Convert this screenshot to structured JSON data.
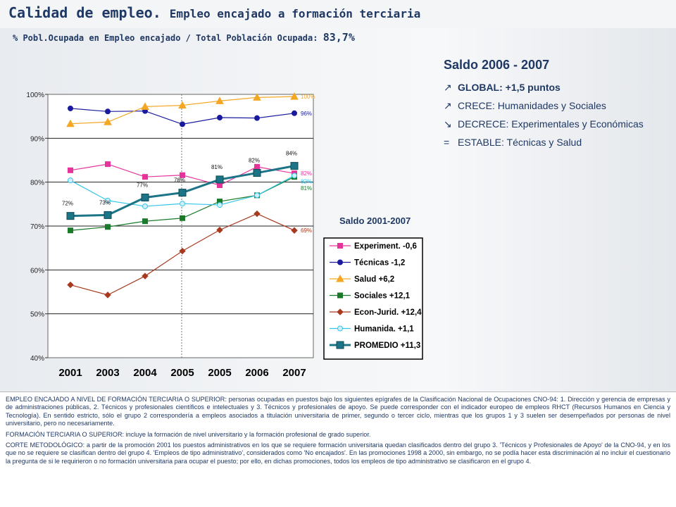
{
  "header": {
    "title_main": "Calidad de empleo.",
    "title_sub": "Empleo encajado a formación terciaria",
    "subtitle_label": "% Pobl.Ocupada en Empleo encajado / Total Población Ocupada:",
    "subtitle_value": "83,7%"
  },
  "saldo": {
    "title": "Saldo 2006 - 2007",
    "items": [
      {
        "symbol": "↗",
        "label": "GLOBAL: +1,5 puntos",
        "bold": true,
        "icon": "arrow-up-icon"
      },
      {
        "symbol": "↗",
        "label": "CRECE: Humanidades y Sociales",
        "bold": false,
        "icon": "arrow-up-icon"
      },
      {
        "symbol": "↘",
        "label": "DECRECE: Experimentales y Económicas",
        "bold": false,
        "icon": "arrow-down-icon"
      },
      {
        "symbol": "=",
        "label": "ESTABLE: Técnicas y Salud",
        "bold": false,
        "icon": "equals-icon"
      }
    ],
    "period_label": "Saldo 2001-2007"
  },
  "chart_data": {
    "type": "line",
    "categories": [
      "2001",
      "2003",
      "2004",
      "2005",
      "2005",
      "2006",
      "2007"
    ],
    "ylim": [
      40,
      100
    ],
    "yticks": [
      "40%",
      "50%",
      "60%",
      "70%",
      "80%",
      "90%",
      "100%"
    ],
    "grid": "horizontal",
    "legend_position": "right",
    "series": [
      {
        "name": "Experiment. -0,6",
        "color": "#e6339b",
        "marker": "square",
        "values": [
          82.7,
          84.1,
          81.2,
          81.6,
          79.3,
          83.5,
          82.0
        ]
      },
      {
        "name": "Técnicas -1,2",
        "color": "#1a1a9e",
        "marker": "circle",
        "values": [
          96.8,
          96.1,
          96.2,
          93.2,
          94.7,
          94.6,
          95.7
        ]
      },
      {
        "name": "Salud +6,2",
        "color": "#f5a623",
        "marker": "triangle",
        "values": [
          93.3,
          93.7,
          97.2,
          97.5,
          98.5,
          99.3,
          99.5
        ]
      },
      {
        "name": "Sociales +12,1",
        "color": "#1a7a2a",
        "marker": "square",
        "values": [
          69.0,
          69.8,
          71.1,
          71.8,
          75.6,
          77.0,
          81.2
        ]
      },
      {
        "name": "Econ-Jurid. +12,4",
        "color": "#a8391e",
        "marker": "diamond",
        "values": [
          56.6,
          54.3,
          58.6,
          64.3,
          69.1,
          72.8,
          69.0
        ]
      },
      {
        "name": "Humanida. +1,1",
        "color": "#33c6e8",
        "marker": "circle",
        "values": [
          80.4,
          75.8,
          74.5,
          75.1,
          74.8,
          77.0,
          81.5
        ]
      },
      {
        "name": "PROMEDIO +11,3",
        "color": "#1b7587",
        "marker": "square-lg",
        "values": [
          72.3,
          72.5,
          76.5,
          77.6,
          80.6,
          82.1,
          83.7
        ]
      }
    ],
    "data_labels": [
      {
        "series": 6,
        "index": 0,
        "text": "72%"
      },
      {
        "series": 6,
        "index": 1,
        "text": "73%"
      },
      {
        "series": 6,
        "index": 2,
        "text": "77%"
      },
      {
        "series": 6,
        "index": 3,
        "text": "78%"
      },
      {
        "series": 6,
        "index": 4,
        "text": "81%"
      },
      {
        "series": 6,
        "index": 5,
        "text": "82%"
      },
      {
        "series": 6,
        "index": 6,
        "text": "84%"
      }
    ],
    "end_labels": [
      {
        "series": 2,
        "text": "100%"
      },
      {
        "series": 1,
        "text": "96%"
      },
      {
        "series": 0,
        "text": "82%"
      },
      {
        "series": 5,
        "text": "82%"
      },
      {
        "series": 3,
        "text": "81%"
      },
      {
        "series": 4,
        "text": "69%"
      }
    ]
  },
  "notes": [
    {
      "id": "empleo",
      "text": "EMPLEO ENCAJADO A NIVEL DE FORMACIÓN TERCIARIA O SUPERIOR: personas ocupadas en puestos bajo los siguientes epígrafes de la Clasificación Nacional de Ocupaciones CNO-94: 1. Dirección y gerencia de empresas y de administraciones públicas, 2. Técnicos y profesionales científicos e intelectuales y 3. Técnicos y profesionales de apoyo. Se puede corresponder con el indicador europeo de empleos RHCT (Recursos Humanos en Ciencia y Tecnología). En sentido estricto, sólo el grupo 2 correspondería a empleos asociados a titulación universitaria de primer, segundo o tercer ciclo, mientras que los grupos 1 y 3 suelen ser desempeñados por personas de nivel universitario, pero no necesariamente."
    },
    {
      "id": "formacion",
      "text": "FORMACIÓN TERCIARIA O SUPERIOR: incluye la formación de nivel universitario y la formación profesional de grado superior."
    },
    {
      "id": "corte",
      "text": "CORTE METODOLÓGICO: a partir de la promoción 2001 los puestos administrativos en los que se requiere formación universitaria quedan clasificados dentro del grupo 3. 'Técnicos y Profesionales de Apoyo' de la CNO-94, y en los que no se requiere se clasifican dentro del grupo 4. 'Empleos de tipo administrativo', considerados como 'No encajados'. En las promociones 1998 a 2000, sin embargo, no se podía hacer esta discriminación al no incluir el cuestionario la pregunta de si le requirieron o no formación universitaria para ocupar el puesto; por ello, en dichas promociones, todos los empleos de tipo administrativo se clasificaron en el grupo 4."
    }
  ]
}
